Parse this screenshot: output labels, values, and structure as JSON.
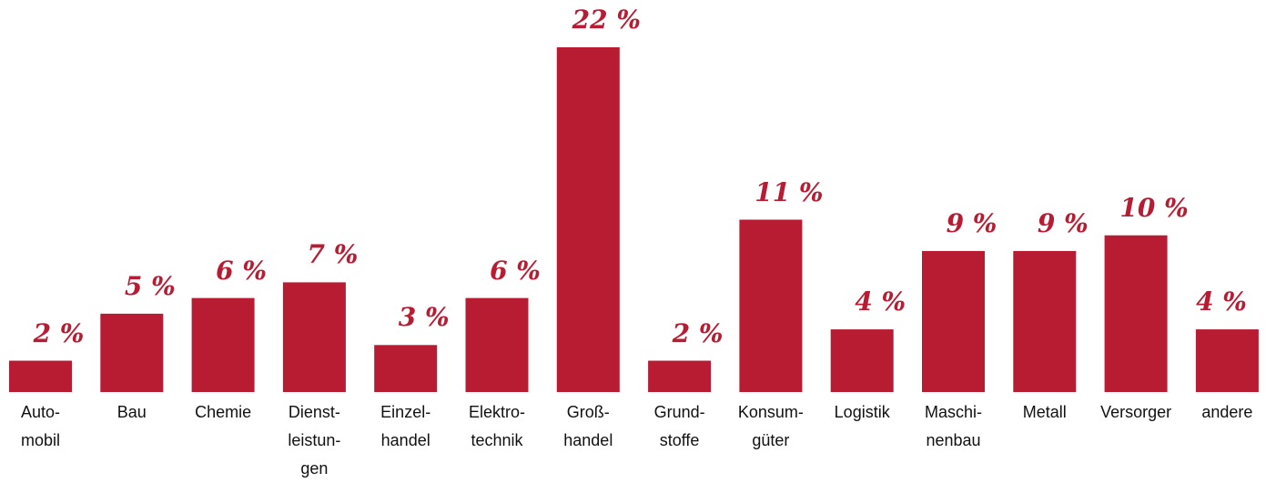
{
  "chart_data": {
    "type": "bar",
    "categories": [
      "Auto-\nmobil",
      "Bau",
      "Chemie",
      "Dienst-\nleistun-\ngen",
      "Einzel-\nhandel",
      "Elektro-\ntechnik",
      "Groß-\nhandel",
      "Grund-\nstoffe",
      "Konsum-\ngüter",
      "Logistik",
      "Maschi-\nnenbau",
      "Metall",
      "Versorger",
      "andere"
    ],
    "values": [
      2,
      5,
      6,
      7,
      3,
      6,
      22,
      2,
      11,
      4,
      9,
      9,
      10,
      4
    ],
    "value_labels": [
      "2 %",
      "5 %",
      "6 %",
      "7 %",
      "3 %",
      "6 %",
      "22 %",
      "2 %",
      "11 %",
      "4 %",
      "9 %",
      "9 %",
      "10 %",
      "4 %"
    ],
    "color": "#b71c32"
  }
}
